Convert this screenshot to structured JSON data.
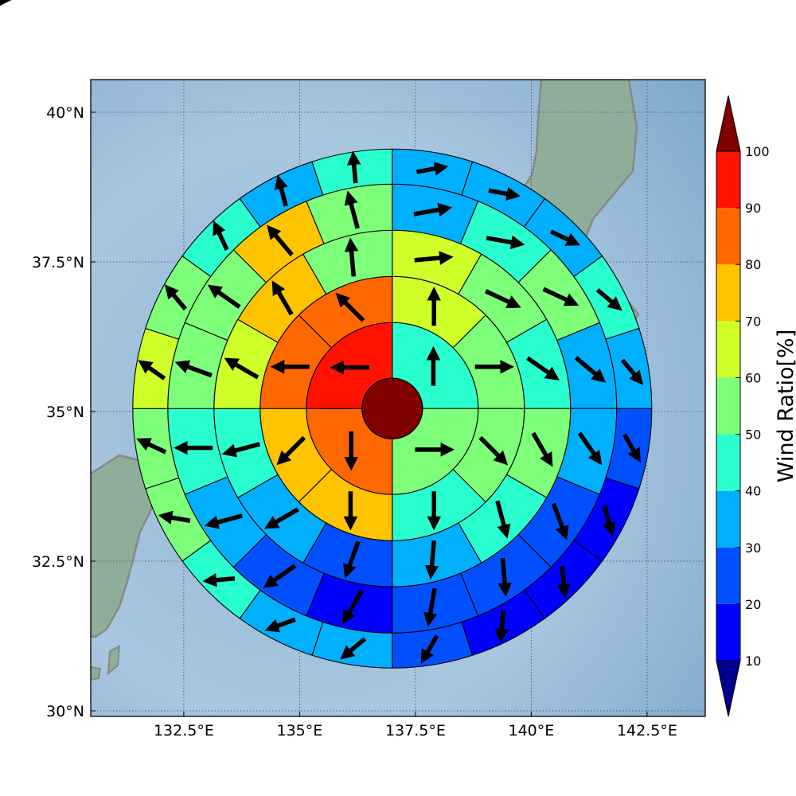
{
  "map": {
    "lon_range": [
      130.5,
      143.5
    ],
    "lat_range": [
      29.6,
      40.6
    ],
    "lon_ticks": [
      {
        "value": 132.5,
        "label": "132.5°E"
      },
      {
        "value": 135,
        "label": "135°E"
      },
      {
        "value": 137.5,
        "label": "137.5°E"
      },
      {
        "value": 140,
        "label": "140°E"
      },
      {
        "value": 142.5,
        "label": "142.5°E"
      }
    ],
    "lat_ticks": [
      {
        "value": 30,
        "label": "30°N"
      },
      {
        "value": 32.5,
        "label": "32.5°N"
      },
      {
        "value": 35,
        "label": "35°N"
      },
      {
        "value": 37.5,
        "label": "37.5°N"
      },
      {
        "value": 40,
        "label": "40°N"
      }
    ],
    "gridlines": true,
    "center_lon": 137.0,
    "center_lat": 35.05,
    "colors": {
      "sea_light": "#c8dcee",
      "sea_dark": "#86aed0",
      "land": "#8fae9a",
      "coastline": "#888888",
      "center_disk": "#800000"
    }
  },
  "colorbar": {
    "label": "Wind Ratio[%]",
    "ticks": [
      "10",
      "20",
      "30",
      "40",
      "50",
      "60",
      "70",
      "80",
      "90",
      "100"
    ],
    "under_color": "#00008f",
    "over_color": "#800000",
    "bins": [
      {
        "from": 10,
        "to": 20,
        "color": "#0000ff"
      },
      {
        "from": 20,
        "to": 30,
        "color": "#0050ff"
      },
      {
        "from": 30,
        "to": 40,
        "color": "#00b0ff"
      },
      {
        "from": 40,
        "to": 50,
        "color": "#29ffce"
      },
      {
        "from": 50,
        "to": 60,
        "color": "#7dff7a"
      },
      {
        "from": 60,
        "to": 70,
        "color": "#ceff29"
      },
      {
        "from": 70,
        "to": 80,
        "color": "#ffc400"
      },
      {
        "from": 80,
        "to": 90,
        "color": "#ff6800"
      },
      {
        "from": 90,
        "to": 100,
        "color": "#ff1300"
      }
    ]
  },
  "chart_data": {
    "type": "polar_sector_map",
    "quantity": "Wind Ratio[%]",
    "rings": [
      {
        "index": 1,
        "sector_deg": 90,
        "start_deg": 0,
        "values": [
          45,
          55,
          85,
          95
        ],
        "arrows_deg": [
          0,
          90,
          180,
          270
        ]
      },
      {
        "index": 2,
        "sector_deg": 45,
        "start_deg": 0,
        "values": [
          65,
          55,
          55,
          40,
          75,
          75,
          85,
          85
        ],
        "arrows_deg": [
          0,
          90,
          135,
          180,
          180,
          225,
          270,
          315
        ]
      },
      {
        "index": 3,
        "sector_deg": 30,
        "start_deg": 0,
        "values": [
          65,
          55,
          45,
          55,
          45,
          35,
          25,
          35,
          45,
          65,
          75,
          55
        ],
        "arrows_deg": [
          85,
          115,
          125,
          150,
          165,
          185,
          200,
          240,
          255,
          300,
          330,
          355
        ]
      },
      {
        "index": 4,
        "sector_deg": 22.5,
        "start_deg": 0,
        "values": [
          35,
          45,
          55,
          35,
          35,
          25,
          25,
          25,
          15,
          25,
          35,
          45,
          55,
          55,
          75,
          55
        ],
        "arrows_deg": [
          80,
          100,
          115,
          130,
          145,
          160,
          175,
          190,
          210,
          235,
          255,
          270,
          290,
          305,
          320,
          345
        ]
      },
      {
        "index": 5,
        "sector_deg": 18,
        "start_deg": 0,
        "values": [
          35,
          35,
          35,
          45,
          35,
          25,
          15,
          15,
          15,
          25,
          35,
          35,
          45,
          55,
          55,
          65,
          55,
          45,
          35,
          45
        ],
        "arrows_deg": [
          80,
          100,
          115,
          130,
          140,
          150,
          165,
          175,
          185,
          210,
          230,
          250,
          265,
          280,
          295,
          305,
          320,
          335,
          345,
          355
        ]
      },
      {
        "index": 6,
        "sector_deg": 15,
        "start_deg": 0,
        "values": [
          25,
          35,
          45,
          35,
          25,
          25,
          15,
          15,
          25,
          15,
          15,
          15,
          15,
          25,
          25,
          35,
          45,
          45,
          55,
          55,
          45,
          45,
          45,
          35
        ],
        "arrows_deg": [
          80,
          100,
          115,
          125,
          130,
          140,
          150,
          160,
          170,
          180,
          185,
          195,
          205,
          220,
          245,
          260,
          280,
          290,
          300,
          305,
          320,
          335,
          350,
          15
        ]
      }
    ]
  }
}
